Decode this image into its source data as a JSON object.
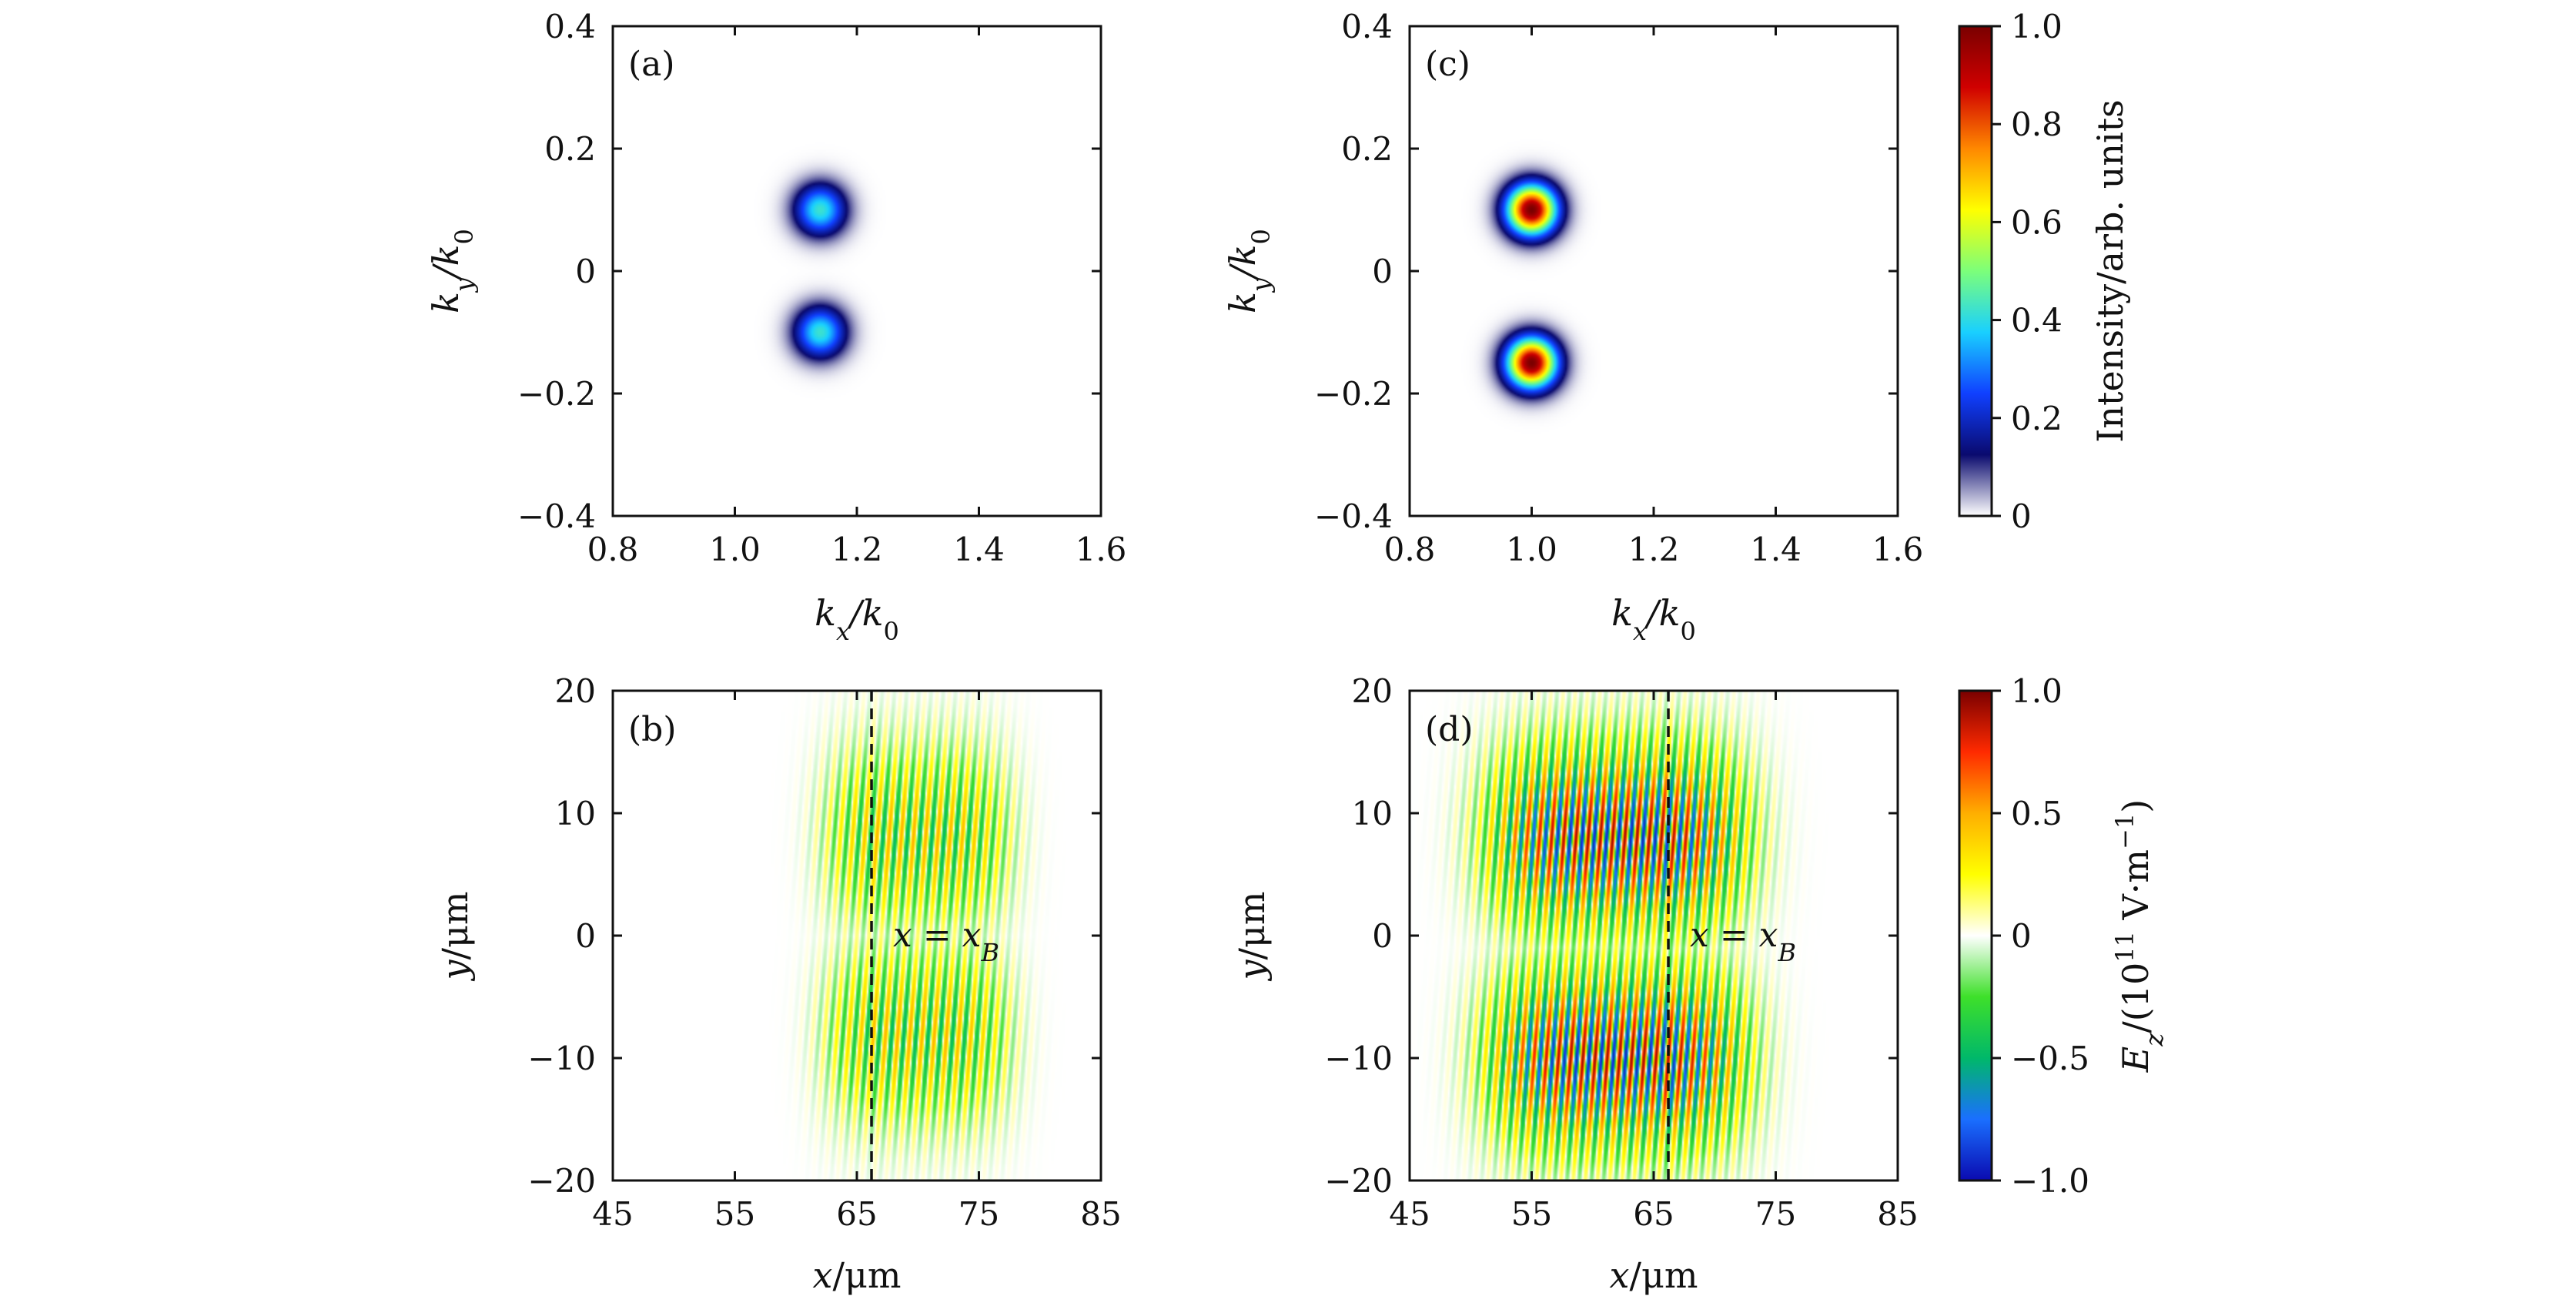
{
  "chart_data": [
    {
      "id": "a",
      "type": "heatmap",
      "panel_label": "(a)",
      "xlabel": "k_x/k_0",
      "ylabel": "k_y/k_0",
      "xlim": [
        0.8,
        1.6
      ],
      "ylim": [
        -0.4,
        0.4
      ],
      "xticks": [
        0.8,
        1.0,
        1.2,
        1.4,
        1.6
      ],
      "xtick_labels": [
        "0.8",
        "1.0",
        "1.2",
        "1.4",
        "1.6"
      ],
      "yticks": [
        -0.4,
        -0.2,
        0,
        0.2,
        0.4
      ],
      "ytick_labels": [
        "−0.4",
        "−0.2",
        "0",
        "0.2",
        "0.4"
      ],
      "spots": [
        {
          "kx": 1.14,
          "ky": 0.1,
          "peak": 0.42
        },
        {
          "kx": 1.14,
          "ky": -0.1,
          "peak": 0.42
        }
      ]
    },
    {
      "id": "b",
      "type": "heatmap",
      "panel_label": "(b)",
      "xlabel": "x/μm",
      "ylabel": "y/μm",
      "xlim": [
        45,
        85
      ],
      "ylim": [
        -20,
        20
      ],
      "xticks": [
        45,
        55,
        65,
        75,
        85
      ],
      "xtick_labels": [
        "45",
        "55",
        "65",
        "75",
        "85"
      ],
      "yticks": [
        -20,
        -10,
        0,
        10,
        20
      ],
      "ytick_labels": [
        "−20",
        "−10",
        "0",
        "10",
        "20"
      ],
      "envelope": {
        "x_center": 70,
        "x_halfwidth": 7.5,
        "lobes_y": [
          8,
          -8
        ],
        "amplitude": 0.5
      },
      "boundary_line_x": 66.2,
      "annotation": "x = x_B"
    },
    {
      "id": "c",
      "type": "heatmap",
      "panel_label": "(c)",
      "xlabel": "k_x/k_0",
      "ylabel": "k_y/k_0",
      "xlim": [
        0.8,
        1.6
      ],
      "ylim": [
        -0.4,
        0.4
      ],
      "xticks": [
        0.8,
        1.0,
        1.2,
        1.4,
        1.6
      ],
      "xtick_labels": [
        "0.8",
        "1.0",
        "1.2",
        "1.4",
        "1.6"
      ],
      "yticks": [
        -0.4,
        -0.2,
        0,
        0.2,
        0.4
      ],
      "ytick_labels": [
        "−0.4",
        "−0.2",
        "0",
        "0.2",
        "0.4"
      ],
      "spots": [
        {
          "kx": 1.0,
          "ky": 0.1,
          "peak": 1.0
        },
        {
          "kx": 1.0,
          "ky": -0.15,
          "peak": 1.0
        }
      ]
    },
    {
      "id": "d",
      "type": "heatmap",
      "panel_label": "(d)",
      "xlabel": "x/μm",
      "ylabel": "y/μm",
      "xlim": [
        45,
        85
      ],
      "ylim": [
        -20,
        20
      ],
      "xticks": [
        45,
        55,
        65,
        75,
        85
      ],
      "xtick_labels": [
        "45",
        "55",
        "65",
        "75",
        "85"
      ],
      "yticks": [
        -20,
        -10,
        0,
        10,
        20
      ],
      "ytick_labels": [
        "−20",
        "−10",
        "0",
        "10",
        "20"
      ],
      "envelope": {
        "x_center": 62,
        "x_halfwidth": 10.5,
        "lobes_y": [
          8,
          -10
        ],
        "amplitude": 0.95
      },
      "boundary_line_x": 66.2,
      "annotation": "x = x_B"
    }
  ],
  "colorbars": [
    {
      "id": "intensity",
      "label": "Intensity/arb. units",
      "range": [
        0,
        1.0
      ],
      "ticks": [
        0,
        0.2,
        0.4,
        0.6,
        0.8,
        1.0
      ],
      "tick_labels": [
        "0",
        "0.2",
        "0.4",
        "0.6",
        "0.8",
        "1.0"
      ]
    },
    {
      "id": "field",
      "label": "E_z/(10^11 V·m^−1)",
      "range": [
        -1.0,
        1.0
      ],
      "ticks": [
        -1.0,
        -0.5,
        0,
        0.5,
        1.0
      ],
      "tick_labels": [
        "−1.0",
        "−0.5",
        "0",
        "0.5",
        "1.0"
      ]
    }
  ],
  "colors": {
    "cmap_intensity": [
      "#ffffff",
      "#0a0a6e",
      "#1040ff",
      "#19d0ff",
      "#7cff7a",
      "#ffff00",
      "#ff8800",
      "#d00000",
      "#7a0000"
    ],
    "cmap_field": [
      "#0a0ab0",
      "#1a6fff",
      "#00b86a",
      "#3ee02a",
      "#ffffff",
      "#ffff00",
      "#ffae00",
      "#ff2a00",
      "#7a0000"
    ],
    "axis": "#111111",
    "boundary": "#111111"
  }
}
